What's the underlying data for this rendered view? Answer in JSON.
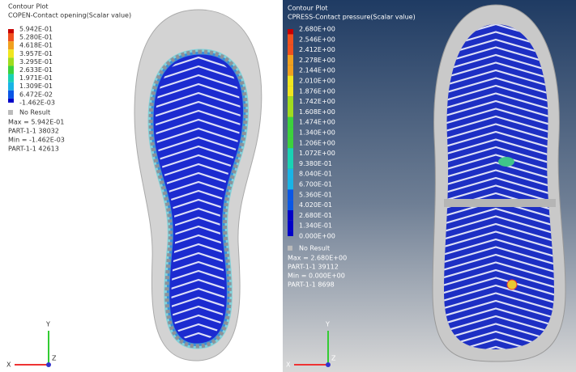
{
  "panels": [
    {
      "title": "Contour Plot",
      "subtitle": "COPEN-Contact opening(Scalar value)",
      "legend": [
        "5.942E-01",
        "5.280E-01",
        "4.618E-01",
        "3.957E-01",
        "3.295E-01",
        "2.633E-01",
        "1.971E-01",
        "1.309E-01",
        "6.472E-02",
        "-1.462E-03"
      ],
      "no_result": "No Result",
      "stats": [
        "Max = 5.942E-01",
        "PART-1-1 38032",
        "Min = -1.462E-03",
        "PART-1-1 42613"
      ],
      "axes": [
        "Y",
        "X",
        "Z"
      ]
    },
    {
      "title": "Contour Plot",
      "subtitle": "CPRESS-Contact pressure(Scalar value)",
      "legend": [
        "2.680E+00",
        "2.546E+00",
        "2.412E+00",
        "2.278E+00",
        "2.144E+00",
        "2.010E+00",
        "1.876E+00",
        "1.742E+00",
        "1.608E+00",
        "1.474E+00",
        "1.340E+00",
        "1.206E+00",
        "1.072E+00",
        "9.380E-01",
        "8.040E-01",
        "6.700E-01",
        "5.360E-01",
        "4.020E-01",
        "2.680E-01",
        "1.340E-01",
        "0.000E+00"
      ],
      "no_result": "No Result",
      "stats": [
        "Max = 2.680E+00",
        "PART-1-1 39112",
        "Min = 0.000E+00",
        "PART-1-1 8698"
      ],
      "axes": [
        "Y",
        "X",
        "Z"
      ]
    }
  ]
}
